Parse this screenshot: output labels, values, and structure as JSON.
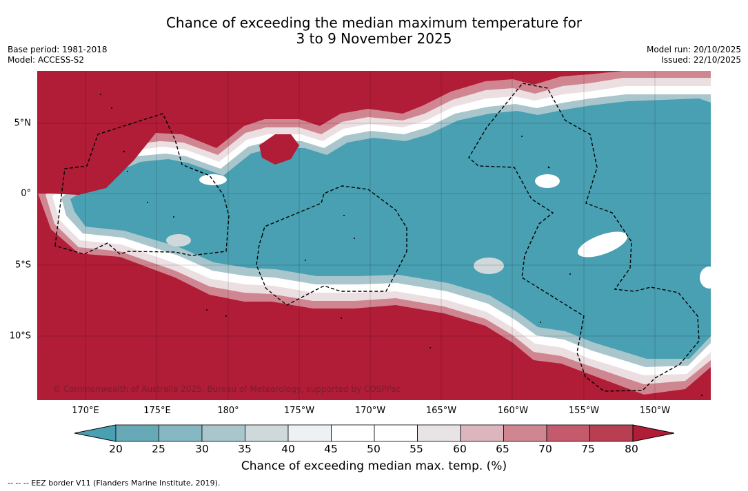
{
  "title": {
    "line1": "Chance of exceeding the median maximum temperature for",
    "line2": "3 to 9 November 2025"
  },
  "meta": {
    "base_period": "Base period: 1981-2018",
    "model": "Model: ACCESS-S2",
    "model_run": "Model run: 20/10/2025",
    "issued": "Issued: 22/10/2025"
  },
  "map": {
    "lon_ticks": [
      "170°E",
      "175°E",
      "180°",
      "175°W",
      "170°W",
      "165°W",
      "160°W",
      "155°W",
      "150°W"
    ],
    "lat_ticks": [
      "5°N",
      "0°",
      "5°S",
      "10°S"
    ],
    "copyright": "© Commonwealth of Australia 2025, Bureau of Meteorology, supported by COSPPac",
    "colors": {
      "hot": "#b11c36",
      "cold": "#48a0b2",
      "neutral": "#ffffff"
    }
  },
  "colorbar": {
    "ticks": [
      "20",
      "25",
      "30",
      "35",
      "40",
      "45",
      "50",
      "55",
      "60",
      "65",
      "70",
      "75",
      "80"
    ],
    "colors": [
      "#48a0b2",
      "#67a9b7",
      "#86b7c3",
      "#a9c6cd",
      "#cfd9dc",
      "#edf1f3",
      "#ffffff",
      "#ffffff",
      "#e8e4e6",
      "#ddb5bc",
      "#d08691",
      "#c45a6b",
      "#b83f51",
      "#b11c36"
    ],
    "label": "Chance of exceeding median max. temp. (%)"
  },
  "legend": {
    "eez": "--  --  -- EEZ border V11 (Flanders Marine Institute, 2019)."
  }
}
